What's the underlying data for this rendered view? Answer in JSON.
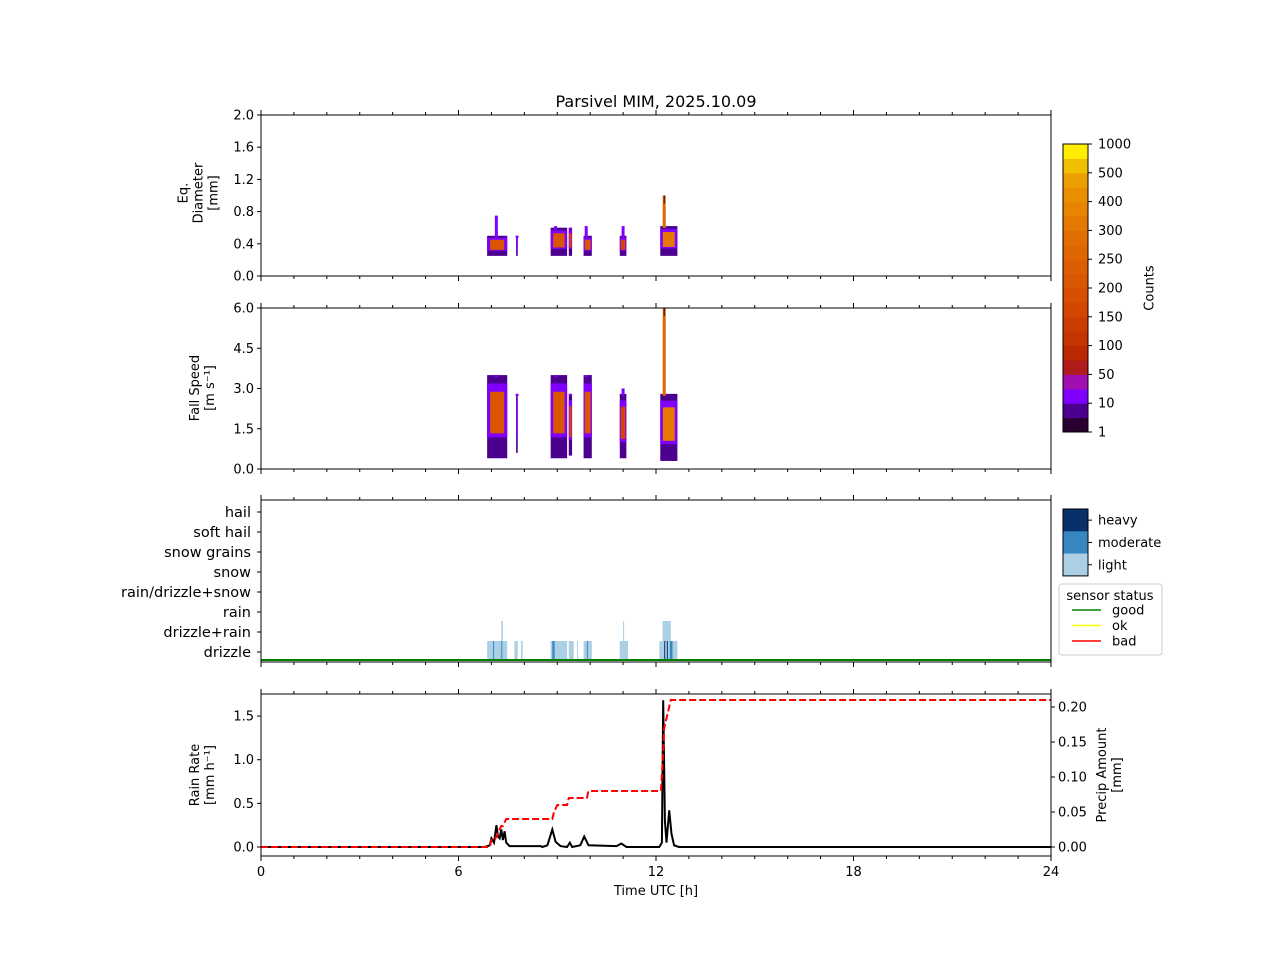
{
  "title": "Parsivel MIM, 2025.10.09",
  "xaxis": {
    "label": "Time UTC [h]",
    "range": [
      0,
      24
    ],
    "major_ticks": [
      "0",
      "6",
      "12",
      "18",
      "24"
    ]
  },
  "chart_data": [
    {
      "type": "heatmap",
      "name": "diameter",
      "ylabel_lines": [
        "Eq.",
        "Diameter",
        "[mm]"
      ],
      "ylim": [
        0,
        2.0
      ],
      "yticks": [
        "0.0",
        "0.4",
        "0.8",
        "1.2",
        "1.6",
        "2.0"
      ],
      "events": [
        {
          "t0": 6.87,
          "t1": 7.48,
          "ymin": 0.25,
          "ymax": 0.5,
          "peak": 0.75,
          "peak_t": 7.15,
          "intensity": 3
        },
        {
          "t0": 7.75,
          "t1": 7.8,
          "ymin": 0.25,
          "ymax": 0.5,
          "peak": 0.5,
          "peak_t": 7.78,
          "intensity": 1
        },
        {
          "t0": 8.8,
          "t1": 9.3,
          "ymin": 0.25,
          "ymax": 0.6,
          "peak": 0.62,
          "peak_t": 8.95,
          "intensity": 3
        },
        {
          "t0": 9.35,
          "t1": 9.45,
          "ymin": 0.25,
          "ymax": 0.6,
          "peak": 0.6,
          "peak_t": 9.4,
          "intensity": 2
        },
        {
          "t0": 9.8,
          "t1": 10.05,
          "ymin": 0.25,
          "ymax": 0.5,
          "peak": 0.62,
          "peak_t": 9.88,
          "intensity": 3
        },
        {
          "t0": 10.9,
          "t1": 11.1,
          "ymin": 0.25,
          "ymax": 0.5,
          "peak": 0.62,
          "peak_t": 11.0,
          "intensity": 2
        },
        {
          "t0": 12.13,
          "t1": 12.65,
          "ymin": 0.25,
          "ymax": 0.62,
          "peak": 1.0,
          "peak_t": 12.25,
          "intensity": 5
        }
      ]
    },
    {
      "type": "heatmap",
      "name": "fall-speed",
      "ylabel_lines": [
        "Fall Speed",
        "[m s⁻¹]"
      ],
      "ylim": [
        0,
        6.0
      ],
      "yticks": [
        "0.0",
        "1.5",
        "3.0",
        "4.5",
        "6.0"
      ],
      "events": [
        {
          "t0": 6.87,
          "t1": 7.48,
          "ymin": 0.4,
          "ymax": 3.5,
          "peak": 3.5,
          "peak_t": 7.15,
          "intensity": 3
        },
        {
          "t0": 7.75,
          "t1": 7.8,
          "ymin": 0.6,
          "ymax": 2.8,
          "peak": 2.8,
          "peak_t": 7.78,
          "intensity": 1
        },
        {
          "t0": 8.8,
          "t1": 9.3,
          "ymin": 0.4,
          "ymax": 3.5,
          "peak": 3.5,
          "peak_t": 8.95,
          "intensity": 3
        },
        {
          "t0": 9.35,
          "t1": 9.45,
          "ymin": 0.5,
          "ymax": 2.8,
          "peak": 2.8,
          "peak_t": 9.4,
          "intensity": 2
        },
        {
          "t0": 9.8,
          "t1": 10.05,
          "ymin": 0.4,
          "ymax": 3.5,
          "peak": 3.5,
          "peak_t": 9.88,
          "intensity": 3
        },
        {
          "t0": 10.9,
          "t1": 11.1,
          "ymin": 0.4,
          "ymax": 2.8,
          "peak": 3.0,
          "peak_t": 11.0,
          "intensity": 2
        },
        {
          "t0": 12.13,
          "t1": 12.65,
          "ymin": 0.3,
          "ymax": 2.8,
          "peak": 6.0,
          "peak_t": 12.25,
          "intensity": 5
        }
      ]
    },
    {
      "type": "bar",
      "name": "precip-type",
      "categories": [
        "drizzle",
        "drizzle+rain",
        "rain",
        "rain/drizzle+snow",
        "snow",
        "snow grains",
        "soft hail",
        "hail"
      ],
      "bars": [
        {
          "t0": 6.87,
          "t1": 7.48,
          "level": 0,
          "intensity": "light"
        },
        {
          "t0": 7.3,
          "t1": 7.35,
          "level": 1,
          "intensity": "light"
        },
        {
          "t0": 7.7,
          "t1": 7.8,
          "level": 0,
          "intensity": "light"
        },
        {
          "t0": 7.9,
          "t1": 7.95,
          "level": 0,
          "intensity": "light"
        },
        {
          "t0": 8.8,
          "t1": 9.3,
          "level": 0,
          "intensity": "light"
        },
        {
          "t0": 9.35,
          "t1": 9.5,
          "level": 0,
          "intensity": "light"
        },
        {
          "t0": 9.6,
          "t1": 9.63,
          "level": 0,
          "intensity": "light"
        },
        {
          "t0": 9.8,
          "t1": 10.05,
          "level": 0,
          "intensity": "light"
        },
        {
          "t0": 10.9,
          "t1": 11.15,
          "level": 0,
          "intensity": "light"
        },
        {
          "t0": 11.0,
          "t1": 11.03,
          "level": 1,
          "intensity": "light"
        },
        {
          "t0": 12.1,
          "t1": 12.65,
          "level": 0,
          "intensity": "light"
        },
        {
          "t0": 12.2,
          "t1": 12.45,
          "level": 1,
          "intensity": "light"
        },
        {
          "t0": 7.05,
          "t1": 7.08,
          "level": 0,
          "intensity": "moderate"
        },
        {
          "t0": 7.3,
          "t1": 7.33,
          "level": 0,
          "intensity": "moderate"
        },
        {
          "t0": 8.85,
          "t1": 8.92,
          "level": 0,
          "intensity": "moderate"
        },
        {
          "t0": 9.9,
          "t1": 9.93,
          "level": 0,
          "intensity": "moderate"
        },
        {
          "t0": 12.42,
          "t1": 12.5,
          "level": 0,
          "intensity": "moderate"
        },
        {
          "t0": 12.25,
          "t1": 12.27,
          "level": 0,
          "intensity": "heavy"
        },
        {
          "t0": 12.33,
          "t1": 12.35,
          "level": 0,
          "intensity": "heavy"
        }
      ],
      "sensor_status": "good",
      "intensity_legend": [
        "heavy",
        "moderate",
        "light"
      ],
      "intensity_colors": {
        "heavy": "#08306b",
        "moderate": "#3787c0",
        "light": "#abd0e6"
      },
      "status_legend": {
        "title": "sensor status",
        "items": [
          {
            "label": "good",
            "color": "#008000"
          },
          {
            "label": "ok",
            "color": "#ffff00"
          },
          {
            "label": "bad",
            "color": "#ff0000"
          }
        ]
      }
    },
    {
      "type": "line",
      "name": "rain",
      "ylabel_lines": [
        "Rain Rate",
        "[mm h⁻¹]"
      ],
      "ylim": [
        0,
        1.75
      ],
      "yticks": [
        "0.0",
        "0.5",
        "1.0",
        "1.5"
      ],
      "rain_rate": {
        "x": [
          0,
          6.8,
          6.95,
          7.0,
          7.08,
          7.15,
          7.2,
          7.25,
          7.3,
          7.35,
          7.4,
          7.45,
          7.55,
          8.5,
          8.55,
          8.7,
          8.85,
          8.95,
          9.1,
          9.3,
          9.38,
          9.45,
          9.7,
          9.82,
          9.95,
          10.8,
          10.95,
          11.1,
          12.1,
          12.18,
          12.22,
          12.27,
          12.32,
          12.4,
          12.47,
          12.55,
          12.7,
          24
        ],
        "y": [
          0,
          0,
          0.02,
          0.1,
          0.05,
          0.25,
          0.12,
          0.1,
          0.2,
          0.08,
          0.18,
          0.05,
          0.01,
          0.01,
          0.0,
          0.02,
          0.2,
          0.06,
          0.01,
          0.0,
          0.05,
          0.0,
          0.02,
          0.12,
          0.02,
          0.01,
          0.04,
          0.0,
          0.0,
          0.05,
          1.68,
          0.3,
          0.05,
          0.42,
          0.15,
          0.02,
          0.0,
          0
        ]
      },
      "y2label_lines": [
        "Precip Amount",
        "[mm]"
      ],
      "y2lim": [
        0,
        0.2186
      ],
      "y2ticks": [
        "0.00",
        "0.05",
        "0.10",
        "0.15",
        "0.20"
      ],
      "precip_amount": {
        "x": [
          0,
          6.95,
          7.0,
          7.1,
          7.2,
          7.3,
          7.35,
          7.45,
          8.85,
          8.9,
          9.0,
          9.3,
          9.35,
          9.9,
          9.95,
          12.15,
          12.2,
          12.25,
          12.35,
          12.45,
          12.55,
          24
        ],
        "y": [
          0,
          0,
          0.01,
          0.01,
          0.02,
          0.03,
          0.03,
          0.04,
          0.04,
          0.05,
          0.06,
          0.06,
          0.07,
          0.07,
          0.08,
          0.08,
          0.12,
          0.17,
          0.19,
          0.21,
          0.21,
          0.21
        ]
      }
    }
  ],
  "colorbar": {
    "label": "Counts",
    "ticks": [
      "1",
      "10",
      "50",
      "100",
      "150",
      "200",
      "250",
      "300",
      "400",
      "500",
      "1000"
    ],
    "colors": [
      "#2a0030",
      "#4c0090",
      "#8000ff",
      "#a010b0",
      "#b01c1c",
      "#bc2800",
      "#c63400",
      "#cc3c00",
      "#d24600",
      "#d64e00",
      "#da5600",
      "#dc5e00",
      "#e06600",
      "#e06e00",
      "#e47800",
      "#e88400",
      "#ea9000",
      "#eca000",
      "#f0c000",
      "#ffee00"
    ]
  }
}
